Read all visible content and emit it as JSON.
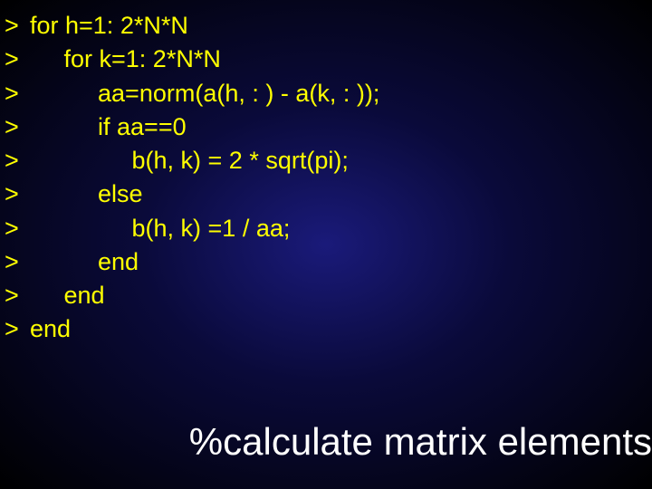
{
  "colors": {
    "code_text": "#ffff00",
    "comment_text": "#ffffff",
    "bg_center": "#1a1a7a",
    "bg_mid": "#0a0a3a",
    "bg_outer": "#000000"
  },
  "typography": {
    "code_fontsize": 27,
    "code_lineheight": 1.38,
    "comment_fontsize": 42,
    "font_family": "Arial, sans-serif"
  },
  "bullet_glyph": ">",
  "code_lines": [
    {
      "indent": 0,
      "text": "for h=1: 2*N*N"
    },
    {
      "indent": 1,
      "text": "for k=1: 2*N*N"
    },
    {
      "indent": 2,
      "text": "aa=norm(a(h, : ) - a(k, : ));"
    },
    {
      "indent": 2,
      "text": "if aa==0"
    },
    {
      "indent": 3,
      "text": "b(h, k) = 2 * sqrt(pi);"
    },
    {
      "indent": 2,
      "text": "else"
    },
    {
      "indent": 3,
      "text": "b(h, k) =1 / aa;"
    },
    {
      "indent": 2,
      "text": "end"
    },
    {
      "indent": 1,
      "text": "end"
    },
    {
      "indent": 0,
      "text": "end"
    }
  ],
  "indent_unit": "     ",
  "comment": "%calculate matrix elements"
}
